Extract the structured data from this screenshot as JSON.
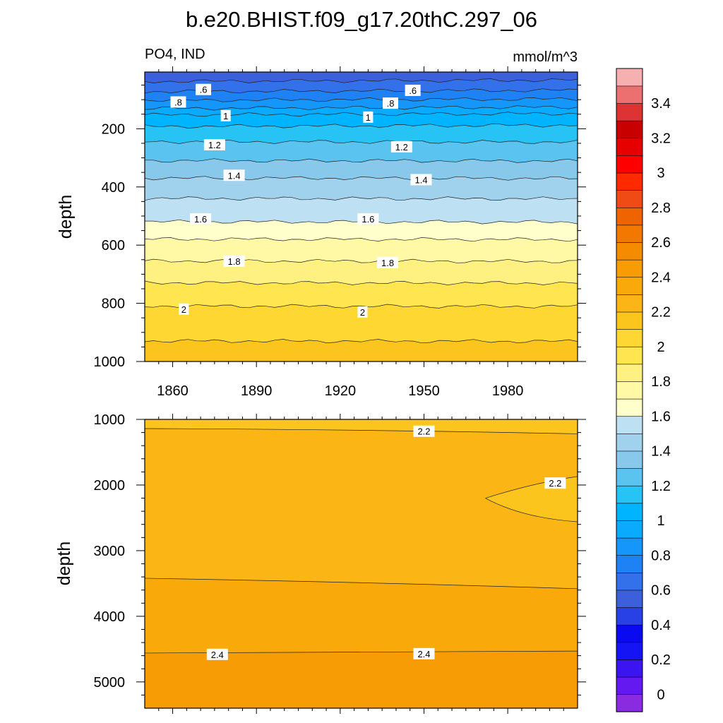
{
  "title": "b.e20.BHIST.f09_g17.20thC.297_06",
  "left_subtitle": "PO4, IND",
  "right_subtitle": "mmol/m^3",
  "colors": {
    "palette": [
      "#8a2be2",
      "#6419f0",
      "#3c14f0",
      "#1414f5",
      "#0a0af0",
      "#2841e6",
      "#3c5fdc",
      "#3271ea",
      "#1e82f5",
      "#1496fa",
      "#0aaaff",
      "#00b4ff",
      "#28c3f5",
      "#5ac3f0",
      "#87c8eb",
      "#a0d2ed",
      "#bde1f2",
      "#ffffcc",
      "#fff9a5",
      "#fff082",
      "#ffe650",
      "#ffd732",
      "#fcc51e",
      "#fbb514",
      "#f9aa0a",
      "#f89c05",
      "#f58c00",
      "#f27800",
      "#f06400",
      "#f04b14",
      "#ff2a00",
      "#ff0000",
      "#e60000",
      "#c80000",
      "#dd3333",
      "#ec7070",
      "#f7b0b0"
    ]
  },
  "chart_data": [
    {
      "type": "heatmap",
      "name_ref": "upper",
      "xlabel": "",
      "ylabel": "depth",
      "x_ticks": [
        "1860",
        "1890",
        "1920",
        "1950",
        "1980"
      ],
      "y_ticks": [
        "200",
        "400",
        "600",
        "800",
        "1000"
      ],
      "xlim": [
        1850,
        2005
      ],
      "ylim": [
        5,
        1000
      ],
      "y_reversed": true,
      "contour_levels": [
        0.6,
        0.7,
        0.8,
        0.9,
        1.0,
        1.1,
        1.2,
        1.3,
        1.4,
        1.5,
        1.6,
        1.7,
        1.8,
        1.9,
        2.0,
        2.1
      ],
      "contour_depths": [
        35,
        70,
        100,
        128,
        150,
        190,
        245,
        310,
        370,
        440,
        520,
        580,
        655,
        730,
        810,
        930
      ],
      "contour_labels": [
        {
          "text": ".6",
          "x": 1871,
          "depth": 65
        },
        {
          "text": ".8",
          "x": 1862,
          "depth": 108
        },
        {
          "text": "1",
          "x": 1879,
          "depth": 155
        },
        {
          "text": "1.2",
          "x": 1875,
          "depth": 255
        },
        {
          "text": "1.4",
          "x": 1882,
          "depth": 360
        },
        {
          "text": "1.6",
          "x": 1870,
          "depth": 510
        },
        {
          "text": "1.8",
          "x": 1882,
          "depth": 655
        },
        {
          "text": "2",
          "x": 1864,
          "depth": 820
        },
        {
          "text": ".6",
          "x": 1946,
          "depth": 68
        },
        {
          "text": ".8",
          "x": 1938,
          "depth": 112
        },
        {
          "text": "1",
          "x": 1930,
          "depth": 160
        },
        {
          "text": "1.2",
          "x": 1942,
          "depth": 262
        },
        {
          "text": "1.4",
          "x": 1949,
          "depth": 375
        },
        {
          "text": "1.6",
          "x": 1930,
          "depth": 510
        },
        {
          "text": "1.8",
          "x": 1937,
          "depth": 660
        },
        {
          "text": "2",
          "x": 1928,
          "depth": 830
        }
      ]
    },
    {
      "type": "heatmap",
      "name_ref": "lower",
      "xlabel": "",
      "ylabel": "depth",
      "x_ticks": [],
      "y_ticks": [
        "1000",
        "2000",
        "3000",
        "4000",
        "5000"
      ],
      "xlim": [
        1850,
        2005
      ],
      "ylim": [
        1000,
        5400
      ],
      "y_reversed": true,
      "contour_levels": [
        2.2,
        2.3,
        2.4
      ],
      "contour_labels": [
        {
          "text": "2.2",
          "x": 1950,
          "depth": 1180
        },
        {
          "text": "2.2",
          "x": 1997,
          "depth": 1970
        },
        {
          "text": "2.4",
          "x": 1876,
          "depth": 4580
        },
        {
          "text": "2.4",
          "x": 1950,
          "depth": 4570
        }
      ]
    }
  ],
  "colorbar": {
    "labels": [
      "3.4",
      "3.2",
      "3",
      "2.8",
      "2.6",
      "2.4",
      "2.2",
      "2",
      "1.8",
      "1.6",
      "1.4",
      "1.2",
      "1",
      "0.8",
      "0.6",
      "0.4",
      "0.2",
      "0"
    ]
  }
}
